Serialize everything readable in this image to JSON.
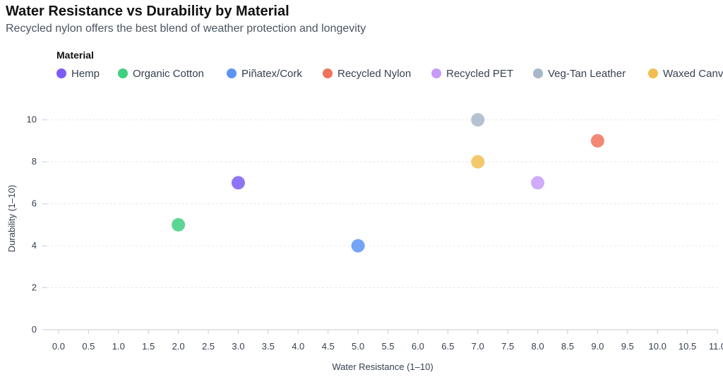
{
  "title": "Water Resistance vs Durability by Material",
  "subtitle": "Recycled nylon offers the best blend of weather protection and longevity",
  "legend_title": "Material",
  "chart_data": {
    "type": "scatter",
    "title": "Water Resistance vs Durability by Material",
    "subtitle": "Recycled nylon offers the best blend of weather protection and longevity",
    "xlabel": "Water Resistance (1–10)",
    "ylabel": "Durability (1–10)",
    "xlim": [
      -0.2,
      11
    ],
    "ylim": [
      0,
      11
    ],
    "xticks": [
      "0.0",
      "0.5",
      "1.0",
      "1.5",
      "2.0",
      "2.5",
      "3.0",
      "3.5",
      "4.0",
      "4.5",
      "5.0",
      "5.5",
      "6.0",
      "6.5",
      "7.0",
      "7.5",
      "8.0",
      "8.5",
      "9.0",
      "9.5",
      "10.0",
      "10.5",
      "11.0"
    ],
    "yticks": [
      "0",
      "2",
      "4",
      "6",
      "8",
      "10"
    ],
    "grid": "horizontal dashed",
    "legend_placement": "top-left",
    "series": [
      {
        "name": "Hemp",
        "color": "#7c5cf5",
        "x": 3,
        "y": 7
      },
      {
        "name": "Organic Cotton",
        "color": "#3fcf80",
        "x": 2,
        "y": 5
      },
      {
        "name": "Piñatex/Cork",
        "color": "#5b94f5",
        "x": 5,
        "y": 4
      },
      {
        "name": "Recycled Nylon",
        "color": "#f0735a",
        "x": 9,
        "y": 9
      },
      {
        "name": "Recycled PET",
        "color": "#c79cf9",
        "x": 8,
        "y": 7
      },
      {
        "name": "Veg-Tan Leather",
        "color": "#a7b6c9",
        "x": 7,
        "y": 10
      },
      {
        "name": "Waxed Canvas",
        "color": "#f2be52",
        "x": 7,
        "y": 8
      }
    ]
  }
}
